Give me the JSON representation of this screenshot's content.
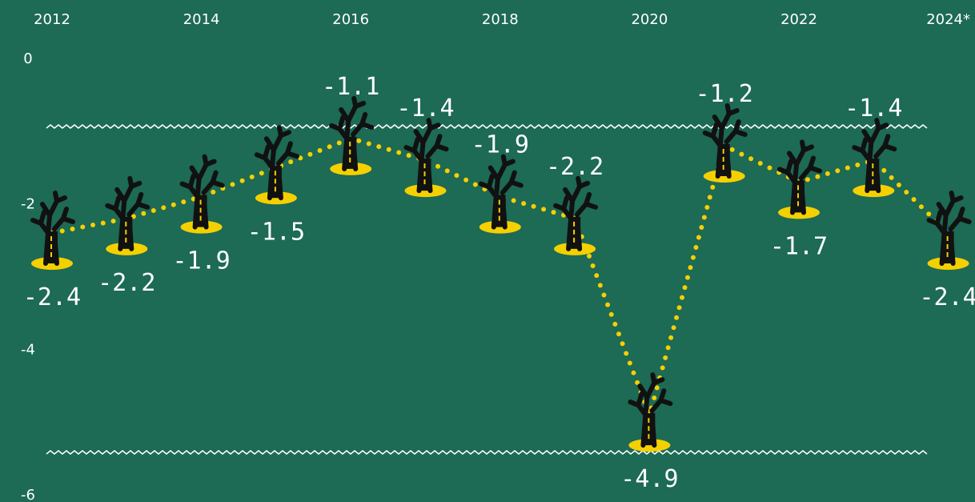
{
  "chart_data": {
    "type": "line",
    "categories": [
      "2012",
      null,
      "2014",
      null,
      "2016",
      null,
      "2018",
      null,
      "2020",
      null,
      "2022",
      null,
      "2024*"
    ],
    "series": [
      {
        "color": "#f5d000",
        "values": [
          -2.4,
          -2.2,
          -1.9,
          -1.5,
          -1.1,
          -1.4,
          -1.9,
          -2.2,
          -4.9,
          -1.2,
          -1.7,
          -1.4,
          -2.4
        ]
      }
    ],
    "ylim": [
      -6,
      0
    ],
    "yticks": [
      0,
      -2,
      -4,
      -6
    ]
  }
}
